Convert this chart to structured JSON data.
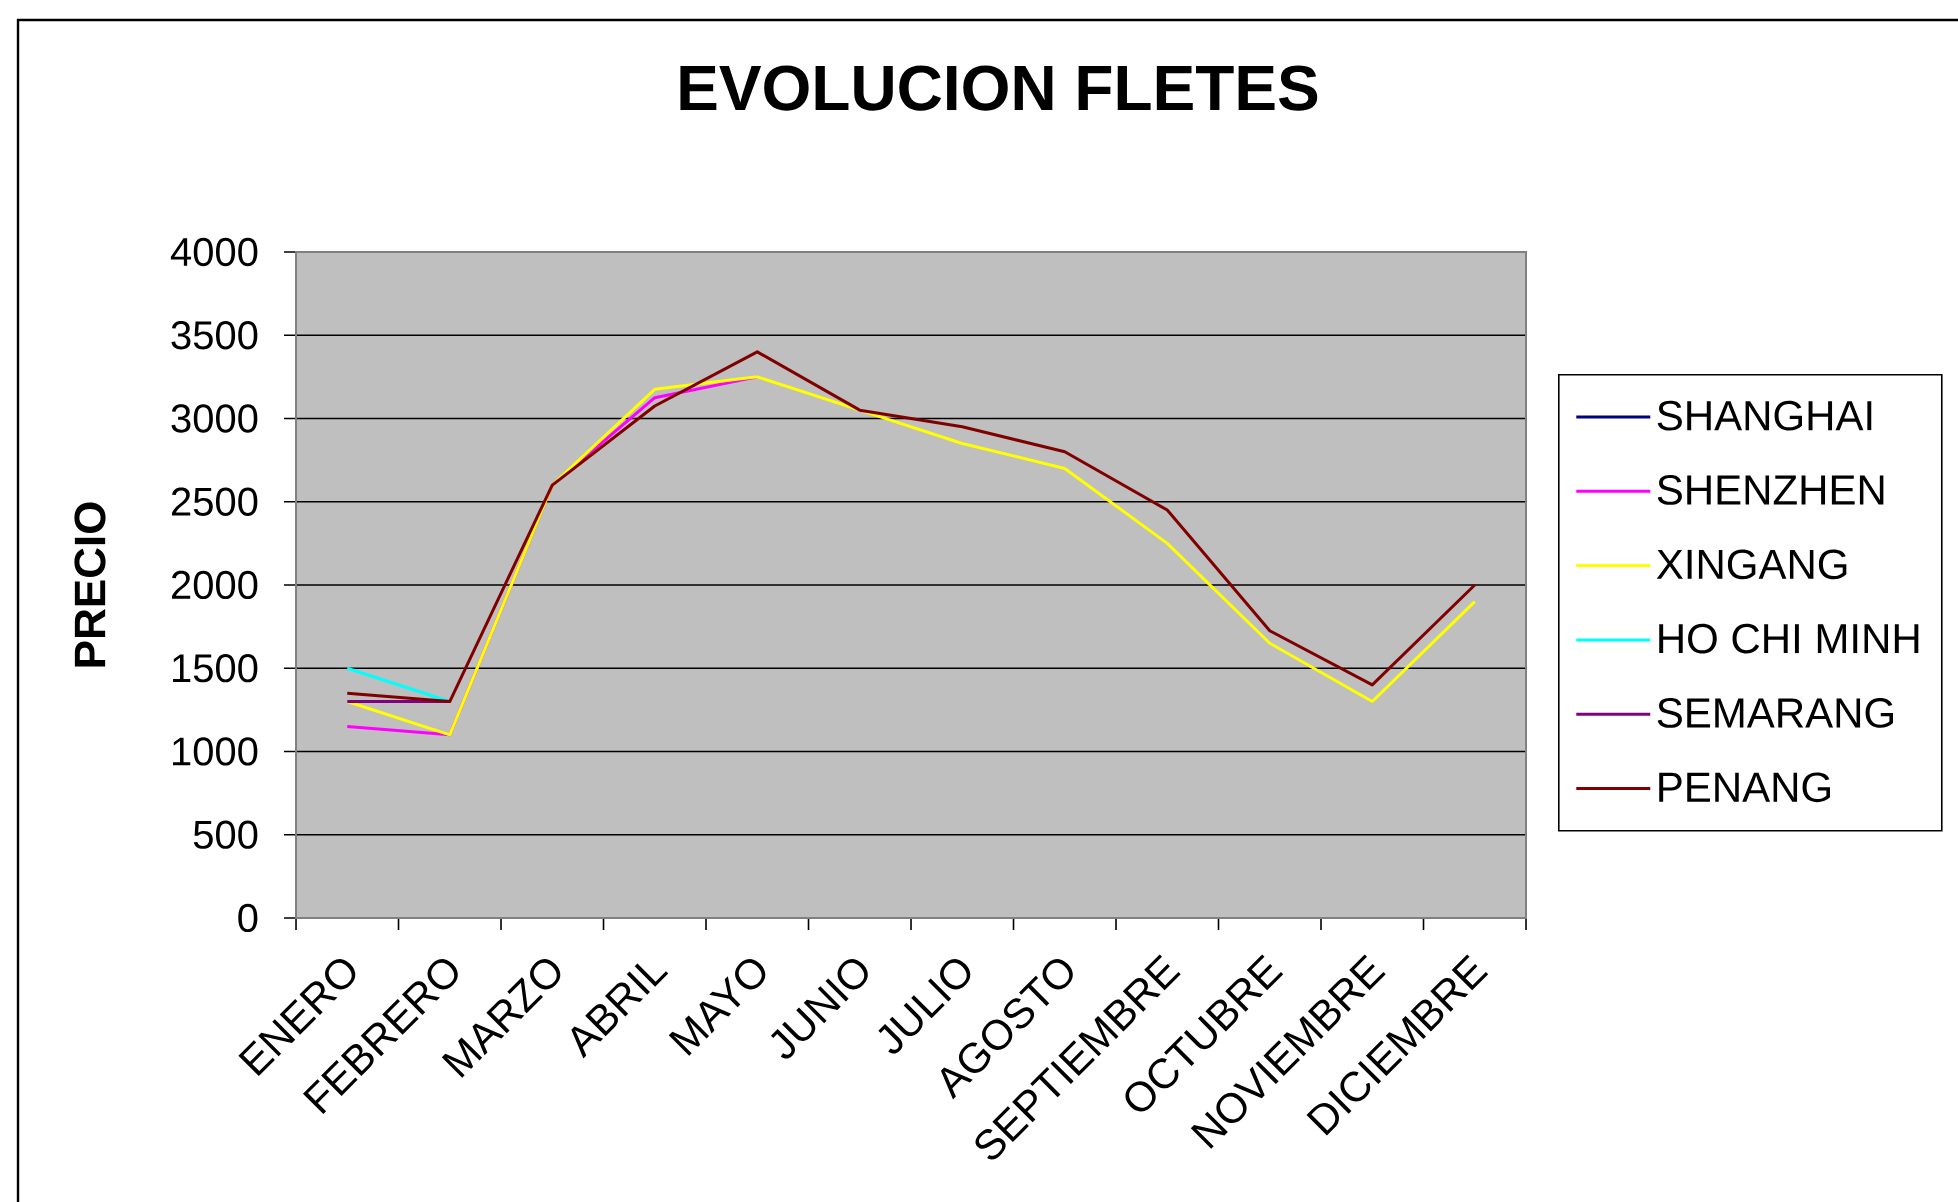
{
  "chart_data": {
    "type": "line",
    "title": "EVOLUCION FLETES",
    "ylabel": "PRECIO",
    "categories": [
      "ENERO",
      "FEBRERO",
      "MARZO",
      "ABRIL",
      "MAYO",
      "JUNIO",
      "JULIO",
      "AGOSTO",
      "SEPTIEMBRE",
      "OCTUBRE",
      "NOVIEMBRE",
      "DICIEMBRE"
    ],
    "series": [
      {
        "name": "SHANGHAI",
        "color": "#000080",
        "values": [
          null,
          null,
          null,
          null,
          null,
          null,
          null,
          null,
          null,
          null,
          null,
          null
        ]
      },
      {
        "name": "SHENZHEN",
        "color": "#ff00ff",
        "values": [
          1150,
          1100,
          2600,
          3125,
          3250,
          null,
          null,
          null,
          null,
          null,
          null,
          null
        ]
      },
      {
        "name": "XINGANG",
        "color": "#ffff00",
        "values": [
          1300,
          1100,
          2600,
          3175,
          3250,
          3050,
          2850,
          2700,
          2250,
          1650,
          1300,
          1900
        ]
      },
      {
        "name": "HO CHI MINH",
        "color": "#00ffff",
        "values": [
          1500,
          1300,
          null,
          null,
          null,
          null,
          null,
          null,
          null,
          null,
          null,
          null
        ]
      },
      {
        "name": "SEMARANG",
        "color": "#800080",
        "values": [
          1300,
          1300,
          null,
          null,
          null,
          null,
          null,
          null,
          null,
          null,
          null,
          null
        ]
      },
      {
        "name": "PENANG",
        "color": "#800000",
        "values": [
          1350,
          1300,
          2600,
          3075,
          3400,
          3050,
          2950,
          2800,
          2450,
          1725,
          1400,
          2000
        ]
      }
    ],
    "ylim": [
      0,
      4000
    ],
    "yticks": [
      0,
      500,
      1000,
      1500,
      2000,
      2500,
      3000,
      3500,
      4000
    ],
    "grid": "y",
    "legend": "right"
  }
}
